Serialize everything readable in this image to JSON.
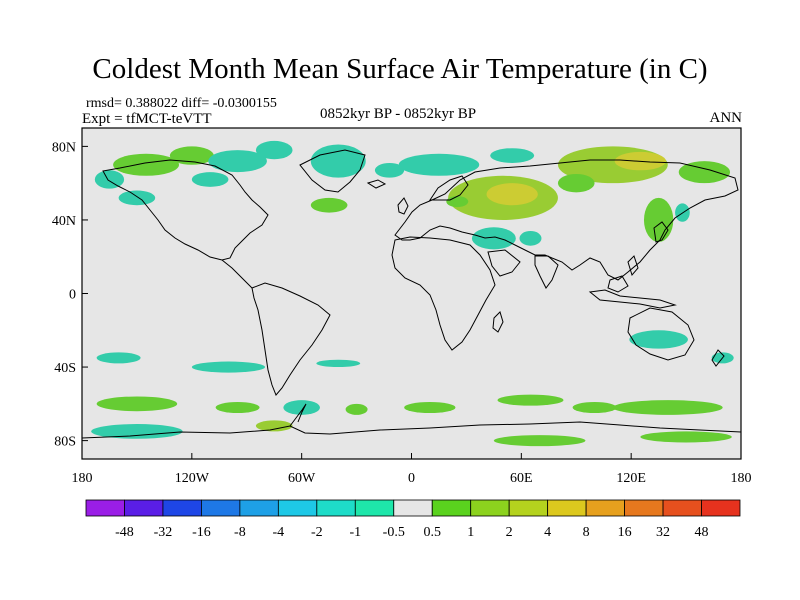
{
  "title": "Coldest Month Mean Surface Air Temperature (in C)",
  "stats": {
    "rmsd_text": "rmsd= 0.388022 diff= -0.0300155"
  },
  "experiment": "Expt = tfMCT-teVTT",
  "period": "0852kyr BP - 0852kyr BP",
  "season": "ANN",
  "map": {
    "projection": "cylindrical-equidistant",
    "lon_range": [
      -180,
      180
    ],
    "lat_range": [
      -90,
      90
    ],
    "background_color": "#e6e6e6",
    "coastline_color": "#000000",
    "x_ticks": [
      {
        "value": -180,
        "label": "180"
      },
      {
        "value": -120,
        "label": "120W"
      },
      {
        "value": -60,
        "label": "60W"
      },
      {
        "value": 0,
        "label": "0"
      },
      {
        "value": 60,
        "label": "60E"
      },
      {
        "value": 120,
        "label": "120E"
      },
      {
        "value": 180,
        "label": "180"
      }
    ],
    "y_ticks": [
      {
        "value": 80,
        "label": "80N"
      },
      {
        "value": 40,
        "label": "40N"
      },
      {
        "value": 0,
        "label": "0"
      },
      {
        "value": -40,
        "label": "40S"
      },
      {
        "value": -80,
        "label": "80S"
      }
    ],
    "anomaly_regions": [
      {
        "lon": -145,
        "lat": 70,
        "rx": 18,
        "ry": 6,
        "color": "#66cc33"
      },
      {
        "lon": -120,
        "lat": 75,
        "rx": 12,
        "ry": 5,
        "color": "#66cc33"
      },
      {
        "lon": -95,
        "lat": 72,
        "rx": 16,
        "ry": 6,
        "color": "#33ccaa"
      },
      {
        "lon": -75,
        "lat": 78,
        "rx": 10,
        "ry": 5,
        "color": "#33ccaa"
      },
      {
        "lon": -40,
        "lat": 72,
        "rx": 15,
        "ry": 9,
        "color": "#33ccaa"
      },
      {
        "lon": -12,
        "lat": 67,
        "rx": 8,
        "ry": 4,
        "color": "#33ccaa"
      },
      {
        "lon": 15,
        "lat": 70,
        "rx": 22,
        "ry": 6,
        "color": "#33ccaa"
      },
      {
        "lon": 55,
        "lat": 75,
        "rx": 12,
        "ry": 4,
        "color": "#33ccaa"
      },
      {
        "lon": -165,
        "lat": 62,
        "rx": 8,
        "ry": 5,
        "color": "#33ccaa"
      },
      {
        "lon": -110,
        "lat": 62,
        "rx": 10,
        "ry": 4,
        "color": "#33ccaa"
      },
      {
        "lon": 50,
        "lat": 52,
        "rx": 30,
        "ry": 12,
        "color": "#99cc33"
      },
      {
        "lon": 55,
        "lat": 54,
        "rx": 14,
        "ry": 6,
        "color": "#cccc33"
      },
      {
        "lon": 110,
        "lat": 70,
        "rx": 30,
        "ry": 10,
        "color": "#99cc33"
      },
      {
        "lon": 125,
        "lat": 72,
        "rx": 14,
        "ry": 5,
        "color": "#cccc33"
      },
      {
        "lon": 160,
        "lat": 66,
        "rx": 14,
        "ry": 6,
        "color": "#66cc33"
      },
      {
        "lon": 90,
        "lat": 60,
        "rx": 10,
        "ry": 5,
        "color": "#66cc33"
      },
      {
        "lon": -150,
        "lat": 52,
        "rx": 10,
        "ry": 4,
        "color": "#33ccaa"
      },
      {
        "lon": -45,
        "lat": 48,
        "rx": 10,
        "ry": 4,
        "color": "#66cc33"
      },
      {
        "lon": 25,
        "lat": 50,
        "rx": 6,
        "ry": 3,
        "color": "#66cc33"
      },
      {
        "lon": 45,
        "lat": 30,
        "rx": 12,
        "ry": 6,
        "color": "#33ccaa"
      },
      {
        "lon": 65,
        "lat": 30,
        "rx": 6,
        "ry": 4,
        "color": "#33ccaa"
      },
      {
        "lon": 135,
        "lat": 40,
        "rx": 8,
        "ry": 12,
        "color": "#66cc33"
      },
      {
        "lon": 148,
        "lat": 44,
        "rx": 4,
        "ry": 5,
        "color": "#33ccaa"
      },
      {
        "lon": -160,
        "lat": -35,
        "rx": 12,
        "ry": 3,
        "color": "#33ccaa"
      },
      {
        "lon": -100,
        "lat": -40,
        "rx": 20,
        "ry": 3,
        "color": "#33ccaa"
      },
      {
        "lon": -40,
        "lat": -38,
        "rx": 12,
        "ry": 2,
        "color": "#33ccaa"
      },
      {
        "lon": 135,
        "lat": -25,
        "rx": 16,
        "ry": 5,
        "color": "#33ccaa"
      },
      {
        "lon": 170,
        "lat": -35,
        "rx": 6,
        "ry": 3,
        "color": "#33ccaa"
      },
      {
        "lon": -150,
        "lat": -60,
        "rx": 22,
        "ry": 4,
        "color": "#66cc33"
      },
      {
        "lon": -95,
        "lat": -62,
        "rx": 12,
        "ry": 3,
        "color": "#66cc33"
      },
      {
        "lon": -60,
        "lat": -62,
        "rx": 10,
        "ry": 4,
        "color": "#33ccaa"
      },
      {
        "lon": -30,
        "lat": -63,
        "rx": 6,
        "ry": 3,
        "color": "#66cc33"
      },
      {
        "lon": 10,
        "lat": -62,
        "rx": 14,
        "ry": 3,
        "color": "#66cc33"
      },
      {
        "lon": 65,
        "lat": -58,
        "rx": 18,
        "ry": 3,
        "color": "#66cc33"
      },
      {
        "lon": 100,
        "lat": -62,
        "rx": 12,
        "ry": 3,
        "color": "#66cc33"
      },
      {
        "lon": 140,
        "lat": -62,
        "rx": 30,
        "ry": 4,
        "color": "#66cc33"
      },
      {
        "lon": -150,
        "lat": -75,
        "rx": 25,
        "ry": 4,
        "color": "#33ccaa"
      },
      {
        "lon": -75,
        "lat": -72,
        "rx": 10,
        "ry": 3,
        "color": "#99cc33"
      },
      {
        "lon": 70,
        "lat": -80,
        "rx": 25,
        "ry": 3,
        "color": "#66cc33"
      },
      {
        "lon": 150,
        "lat": -78,
        "rx": 25,
        "ry": 3,
        "color": "#66cc33"
      }
    ]
  },
  "colorbar": {
    "colors": [
      "#9a1ee6",
      "#5a1ee6",
      "#1e46e6",
      "#1e78e6",
      "#1ea0e6",
      "#1ec8e6",
      "#1edcc8",
      "#1ee6aa",
      "#e6e6e6",
      "#5ad21e",
      "#8cd21e",
      "#b4d21e",
      "#dcc81e",
      "#e6a01e",
      "#e6781e",
      "#e6501e",
      "#e6321e"
    ],
    "labels": [
      "-48",
      "-32",
      "-16",
      "-8",
      "-4",
      "-2",
      "-1",
      "-0.5",
      "0.5",
      "1",
      "2",
      "4",
      "8",
      "16",
      "32",
      "48"
    ]
  }
}
